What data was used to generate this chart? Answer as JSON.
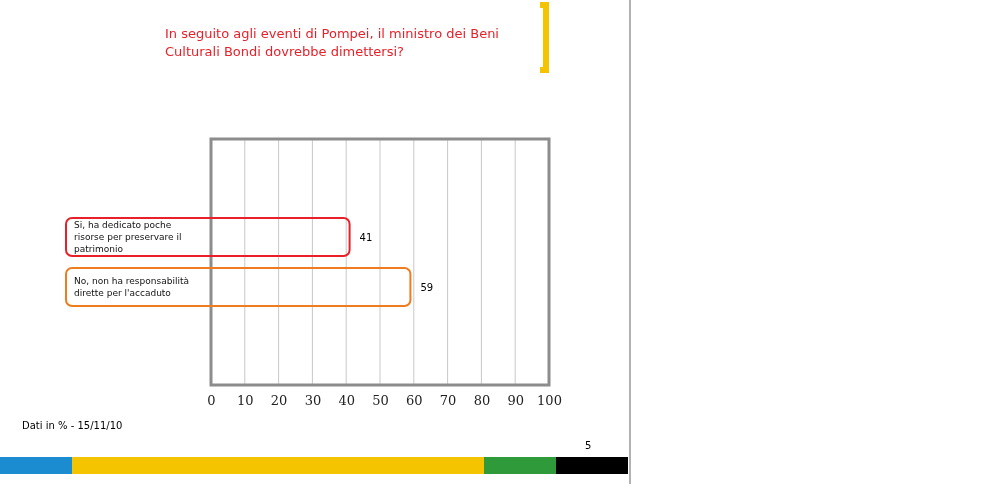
{
  "chart_data": {
    "type": "bar",
    "orientation": "horizontal",
    "title": "In seguito agli eventi di Pompei, il ministro dei Beni Culturali Bondi dovrebbe dimettersi?",
    "categories": [
      "Si, ha dedicato poche risorse per preservare il patrimonio",
      "No, non ha responsabilità dirette per l'accaduto"
    ],
    "values": [
      41,
      59
    ],
    "colors": [
      "#e8202a",
      "#f07c20"
    ],
    "xlim": [
      0,
      100
    ],
    "xticks": [
      0,
      10,
      20,
      30,
      40,
      50,
      60,
      70,
      80,
      90,
      100
    ],
    "grid": "x",
    "data_labels": true,
    "annotations": [
      "Dati in % - 15/11/10",
      "5"
    ]
  }
}
